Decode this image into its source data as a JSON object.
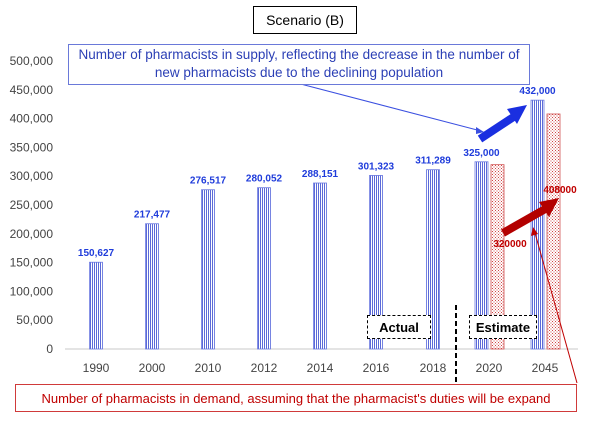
{
  "chart_data": {
    "type": "bar",
    "title": "Scenario (B)",
    "categories": [
      "1990",
      "2000",
      "2010",
      "2012",
      "2014",
      "2016",
      "2018",
      "2020",
      "2045"
    ],
    "series": [
      {
        "values": [
          150627,
          217477,
          276517,
          280052,
          288151,
          301323,
          311289,
          325000,
          432000
        ],
        "labels": [
          "150,627",
          "217,477",
          "276,517",
          "280,052",
          "288,151",
          "301,323",
          "311,289",
          "325,000",
          "432,000"
        ],
        "color": "#6a78e0"
      },
      {
        "values": [
          null,
          null,
          null,
          null,
          null,
          null,
          null,
          320000,
          408000
        ],
        "color": "#d05050"
      }
    ],
    "demand_labels": {
      "2020": "320000",
      "2045": "408000"
    },
    "ylim": [
      0,
      500000
    ],
    "yticks": [
      "0",
      "50,000",
      "100,000",
      "150,000",
      "200,000",
      "250,000",
      "300,000",
      "350,000",
      "400,000",
      "450,000",
      "500,000"
    ],
    "grid": false,
    "annotations": {
      "supply": "Number of pharmacists in supply, reflecting the decrease in the number of new pharmacists due to the declining population",
      "demand": "Number of pharmacists in demand, assuming that the pharmacist's duties will be expand",
      "actual": "Actual",
      "estimate": "Estimate"
    },
    "colors": {
      "supply_text": "#1f3cdb",
      "demand_text": "#c00000",
      "supply_arrow": "#1a2fe0",
      "demand_arrow": "#b30000"
    }
  }
}
